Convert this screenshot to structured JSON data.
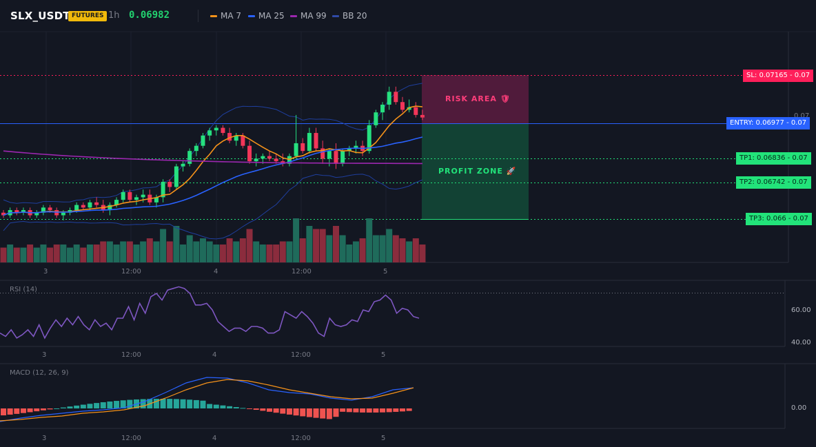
{
  "header": {
    "symbol": "SLX_USDT",
    "badge": "FUTURES",
    "interval": "1h",
    "last_price": "0.06982",
    "indicators": [
      {
        "label": "MA 7",
        "color": "#f7931a"
      },
      {
        "label": "MA 25",
        "color": "#2962ff"
      },
      {
        "label": "MA 99",
        "color": "#9c27b0"
      },
      {
        "label": "BB 20",
        "color": "#1e3a8a"
      }
    ]
  },
  "zones": {
    "risk_label": "RISK AREA",
    "risk_icon": "shield-icon",
    "profit_label": "PROFIT ZONE",
    "profit_icon": "rocket-icon"
  },
  "levels": {
    "sl": {
      "label": "SL: 0.07165",
      "value": "0.07"
    },
    "entry": {
      "label": "ENTRY: 0.06977",
      "value": "0.07"
    },
    "tp1": {
      "label": "TP1: 0.06836",
      "value": "0.07"
    },
    "tp2": {
      "label": "TP2: 0.06742",
      "value": "0.07"
    },
    "tp3": {
      "label": "TP3: 0.066",
      "value": "0.07"
    },
    "axis_faint": "0.07"
  },
  "time_axis": [
    "3",
    "12:00",
    "4",
    "12:00",
    "5"
  ],
  "rsi": {
    "label": "RSI (14)",
    "axis": [
      "60.00",
      "40.00"
    ],
    "values": [
      46,
      44,
      48,
      43,
      45,
      48,
      44,
      51,
      43,
      49,
      54,
      50,
      55,
      51,
      56,
      51,
      48,
      54,
      50,
      52,
      48,
      55,
      55,
      62,
      54,
      64,
      58,
      68,
      70,
      66,
      72,
      73,
      74,
      73,
      70,
      63,
      63,
      64,
      60,
      53,
      50,
      47,
      49,
      49,
      47,
      50,
      50,
      49,
      46,
      46,
      48,
      59,
      57,
      55,
      59,
      56,
      52,
      46,
      44,
      55,
      51,
      50,
      51,
      54,
      53,
      60,
      59,
      65,
      66,
      69,
      66,
      58,
      61,
      60,
      56,
      55
    ]
  },
  "macd": {
    "label": "MACD (12, 26, 9)",
    "axis": [
      "0.00"
    ]
  },
  "chart_data": {
    "type": "candlestick",
    "x_ticks": [
      "3",
      "12:00",
      "4",
      "12:00",
      "5"
    ],
    "overlays": [
      "MA 7",
      "MA 25",
      "MA 99",
      "BB 20"
    ],
    "levels": {
      "sl": 0.07165,
      "entry": 0.06977,
      "tp1": 0.06836,
      "tp2": 0.06742,
      "tp3": 0.066
    },
    "candles": [
      [
        0.0663,
        0.0664,
        0.0661,
        0.0662
      ],
      [
        0.0662,
        0.0665,
        0.0661,
        0.0664
      ],
      [
        0.0664,
        0.0665,
        0.0662,
        0.0663
      ],
      [
        0.0663,
        0.0665,
        0.0662,
        0.0664
      ],
      [
        0.0664,
        0.0665,
        0.0661,
        0.0662
      ],
      [
        0.0662,
        0.0664,
        0.0661,
        0.0663
      ],
      [
        0.0663,
        0.0666,
        0.0662,
        0.0665
      ],
      [
        0.0665,
        0.0666,
        0.0663,
        0.0664
      ],
      [
        0.0664,
        0.0665,
        0.0661,
        0.0662
      ],
      [
        0.0662,
        0.0664,
        0.066,
        0.0663
      ],
      [
        0.0663,
        0.0665,
        0.0662,
        0.0664
      ],
      [
        0.0664,
        0.0667,
        0.0663,
        0.0666
      ],
      [
        0.0666,
        0.0667,
        0.0664,
        0.0665
      ],
      [
        0.0665,
        0.0668,
        0.0664,
        0.0667
      ],
      [
        0.0667,
        0.0669,
        0.0665,
        0.0666
      ],
      [
        0.0666,
        0.0668,
        0.0663,
        0.0664
      ],
      [
        0.0664,
        0.0667,
        0.0662,
        0.0666
      ],
      [
        0.0666,
        0.0669,
        0.0665,
        0.0668
      ],
      [
        0.0668,
        0.0672,
        0.0667,
        0.0671
      ],
      [
        0.0671,
        0.0672,
        0.0667,
        0.0668
      ],
      [
        0.0668,
        0.067,
        0.0666,
        0.0669
      ],
      [
        0.0669,
        0.0672,
        0.0667,
        0.067
      ],
      [
        0.067,
        0.0672,
        0.0666,
        0.0667
      ],
      [
        0.0667,
        0.067,
        0.0665,
        0.0669
      ],
      [
        0.0669,
        0.0676,
        0.0667,
        0.0675
      ],
      [
        0.0675,
        0.0676,
        0.0671,
        0.0673
      ],
      [
        0.0673,
        0.0682,
        0.0672,
        0.0681
      ],
      [
        0.0681,
        0.0683,
        0.0679,
        0.0682
      ],
      [
        0.0682,
        0.0688,
        0.0681,
        0.0687
      ],
      [
        0.0687,
        0.069,
        0.0685,
        0.0689
      ],
      [
        0.0689,
        0.0694,
        0.0688,
        0.0693
      ],
      [
        0.0693,
        0.0696,
        0.0691,
        0.0695
      ],
      [
        0.0695,
        0.0697,
        0.0693,
        0.0696
      ],
      [
        0.0696,
        0.0697,
        0.0693,
        0.0694
      ],
      [
        0.0694,
        0.0696,
        0.069,
        0.0691
      ],
      [
        0.0691,
        0.0694,
        0.0689,
        0.0693
      ],
      [
        0.0693,
        0.0694,
        0.0688,
        0.0689
      ],
      [
        0.0689,
        0.0691,
        0.0682,
        0.0683
      ],
      [
        0.0683,
        0.0686,
        0.0681,
        0.0684
      ],
      [
        0.0684,
        0.0686,
        0.0682,
        0.0685
      ],
      [
        0.0685,
        0.0687,
        0.0683,
        0.0684
      ],
      [
        0.0684,
        0.0686,
        0.0682,
        0.0683
      ],
      [
        0.0683,
        0.0686,
        0.0681,
        0.0682
      ],
      [
        0.0682,
        0.0686,
        0.0681,
        0.0685
      ],
      [
        0.0685,
        0.0701,
        0.0684,
        0.069
      ],
      [
        0.069,
        0.0692,
        0.0686,
        0.0687
      ],
      [
        0.0687,
        0.0696,
        0.0686,
        0.0694
      ],
      [
        0.0694,
        0.0696,
        0.0687,
        0.0688
      ],
      [
        0.0688,
        0.0691,
        0.0682,
        0.0684
      ],
      [
        0.0684,
        0.0688,
        0.0681,
        0.0687
      ],
      [
        0.0687,
        0.069,
        0.068,
        0.0682
      ],
      [
        0.0682,
        0.0688,
        0.0681,
        0.0687
      ],
      [
        0.0687,
        0.0689,
        0.0685,
        0.0688
      ],
      [
        0.0688,
        0.0691,
        0.0686,
        0.0689
      ],
      [
        0.0689,
        0.0691,
        0.0685,
        0.0687
      ],
      [
        0.0687,
        0.0699,
        0.0686,
        0.0697
      ],
      [
        0.0697,
        0.0703,
        0.0696,
        0.0702
      ],
      [
        0.0702,
        0.0706,
        0.0699,
        0.0705
      ],
      [
        0.0705,
        0.0712,
        0.0703,
        0.071
      ],
      [
        0.071,
        0.0712,
        0.0705,
        0.0706
      ],
      [
        0.0706,
        0.0708,
        0.0702,
        0.0703
      ],
      [
        0.0703,
        0.0707,
        0.0702,
        0.0704
      ],
      [
        0.0704,
        0.0706,
        0.07,
        0.0701
      ],
      [
        0.0701,
        0.0703,
        0.0699,
        0.07
      ]
    ]
  }
}
